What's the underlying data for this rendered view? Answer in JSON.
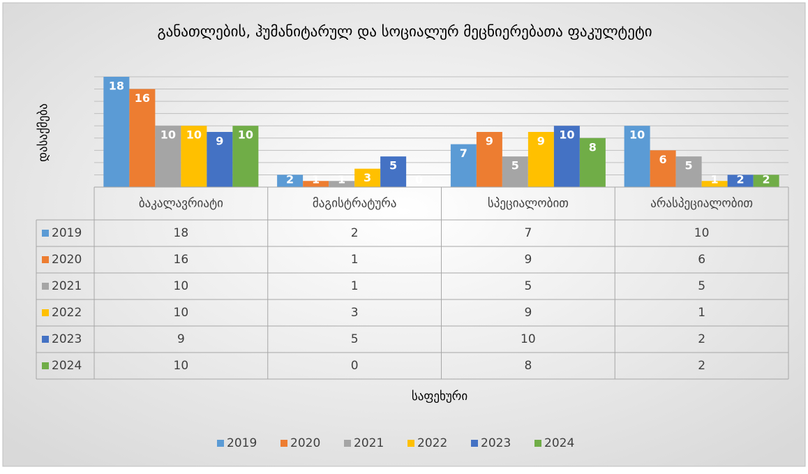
{
  "chart_data": {
    "type": "bar",
    "title": "განათლების, ჰუმანიტარულ და სოციალურ მეცნიერებათა ფაკულტეტი",
    "y_label": "დასაქმება",
    "x_label": "საფეხური",
    "categories": [
      "ბაკალავრიატი",
      "მაგისტრატურა",
      "სპეციალობით",
      "არასპეციალობით"
    ],
    "series": [
      {
        "name": "2019",
        "color": "#5b9bd5",
        "values": [
          18,
          2,
          7,
          10
        ]
      },
      {
        "name": "2020",
        "color": "#ed7d31",
        "values": [
          16,
          1,
          9,
          6
        ]
      },
      {
        "name": "2021",
        "color": "#a5a5a5",
        "values": [
          10,
          1,
          5,
          5
        ]
      },
      {
        "name": "2022",
        "color": "#ffc000",
        "values": [
          10,
          3,
          9,
          1
        ]
      },
      {
        "name": "2023",
        "color": "#4472c4",
        "values": [
          9,
          5,
          10,
          2
        ]
      },
      {
        "name": "2024",
        "color": "#70ad47",
        "values": [
          10,
          0,
          8,
          2
        ]
      }
    ],
    "ylim": [
      0,
      18
    ],
    "yticks": [
      0,
      2,
      4,
      6,
      8,
      10,
      12,
      14,
      16,
      18
    ],
    "grid": true,
    "legend": "bottom",
    "data_table": true
  }
}
